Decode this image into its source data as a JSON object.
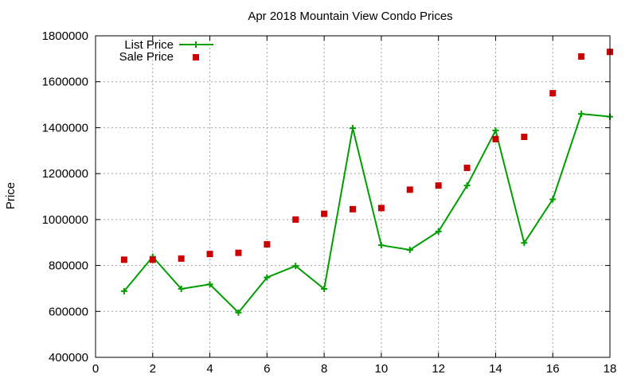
{
  "chart_data": {
    "type": "line",
    "title": "Apr 2018 Mountain View Condo Prices",
    "xlabel": "",
    "ylabel": "Price",
    "xlim": [
      0,
      18
    ],
    "ylim": [
      400000,
      1800000
    ],
    "xticks": [
      0,
      2,
      4,
      6,
      8,
      10,
      12,
      14,
      16,
      18
    ],
    "yticks": [
      400000,
      600000,
      800000,
      1000000,
      1200000,
      1400000,
      1600000,
      1800000
    ],
    "grid": true,
    "legend_position": "top-left",
    "series": [
      {
        "name": "List Price",
        "style": "line-points",
        "color": "#009e00",
        "x": [
          1,
          2,
          3,
          4,
          5,
          6,
          7,
          8,
          9,
          10,
          11,
          12,
          13,
          14,
          15,
          16,
          17,
          18
        ],
        "y": [
          688000,
          838000,
          698000,
          718000,
          595000,
          748000,
          798000,
          698000,
          1398000,
          888000,
          868000,
          948000,
          1148000,
          1388000,
          898000,
          1088000,
          1460000,
          1448000
        ]
      },
      {
        "name": "Sale Price",
        "style": "points",
        "color": "#cc0000",
        "x": [
          1,
          2,
          3,
          4,
          5,
          6,
          7,
          8,
          9,
          10,
          11,
          12,
          13,
          14,
          15,
          16,
          17,
          18
        ],
        "y": [
          825000,
          825000,
          830000,
          850000,
          855000,
          892000,
          1000000,
          1025000,
          1045000,
          1050000,
          1130000,
          1148000,
          1225000,
          1350000,
          1360000,
          1550000,
          1710000,
          1730000
        ]
      }
    ]
  }
}
